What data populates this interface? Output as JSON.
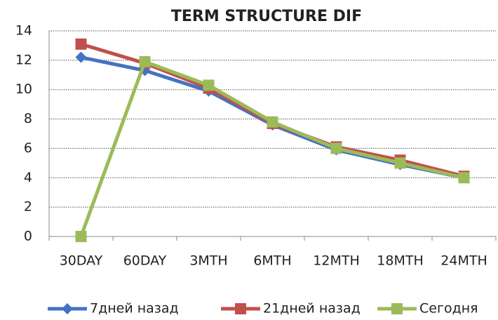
{
  "chart_data": {
    "type": "line",
    "title": "TERM STRUCTURE DIF",
    "categories": [
      "30DAY",
      "60DAY",
      "3MTH",
      "6MTH",
      "12MTH",
      "18MTH",
      "24MTH"
    ],
    "series": [
      {
        "name": "7дней назад",
        "color": "#4472c4",
        "marker": "diamond",
        "values": [
          12.2,
          11.3,
          9.9,
          7.6,
          5.9,
          4.9,
          4.0
        ]
      },
      {
        "name": "21дней назад",
        "color": "#c0504d",
        "marker": "square",
        "values": [
          13.1,
          11.8,
          10.1,
          7.7,
          6.1,
          5.2,
          4.1
        ]
      },
      {
        "name": "Сегодня",
        "color": "#9bbb59",
        "marker": "square",
        "values": [
          0,
          11.9,
          10.3,
          7.8,
          6.0,
          5.0,
          4.0
        ]
      }
    ],
    "ylim": [
      0,
      14
    ],
    "yticks": [
      0,
      2,
      4,
      6,
      8,
      10,
      12,
      14
    ],
    "grid": true,
    "legend": "bottom"
  }
}
